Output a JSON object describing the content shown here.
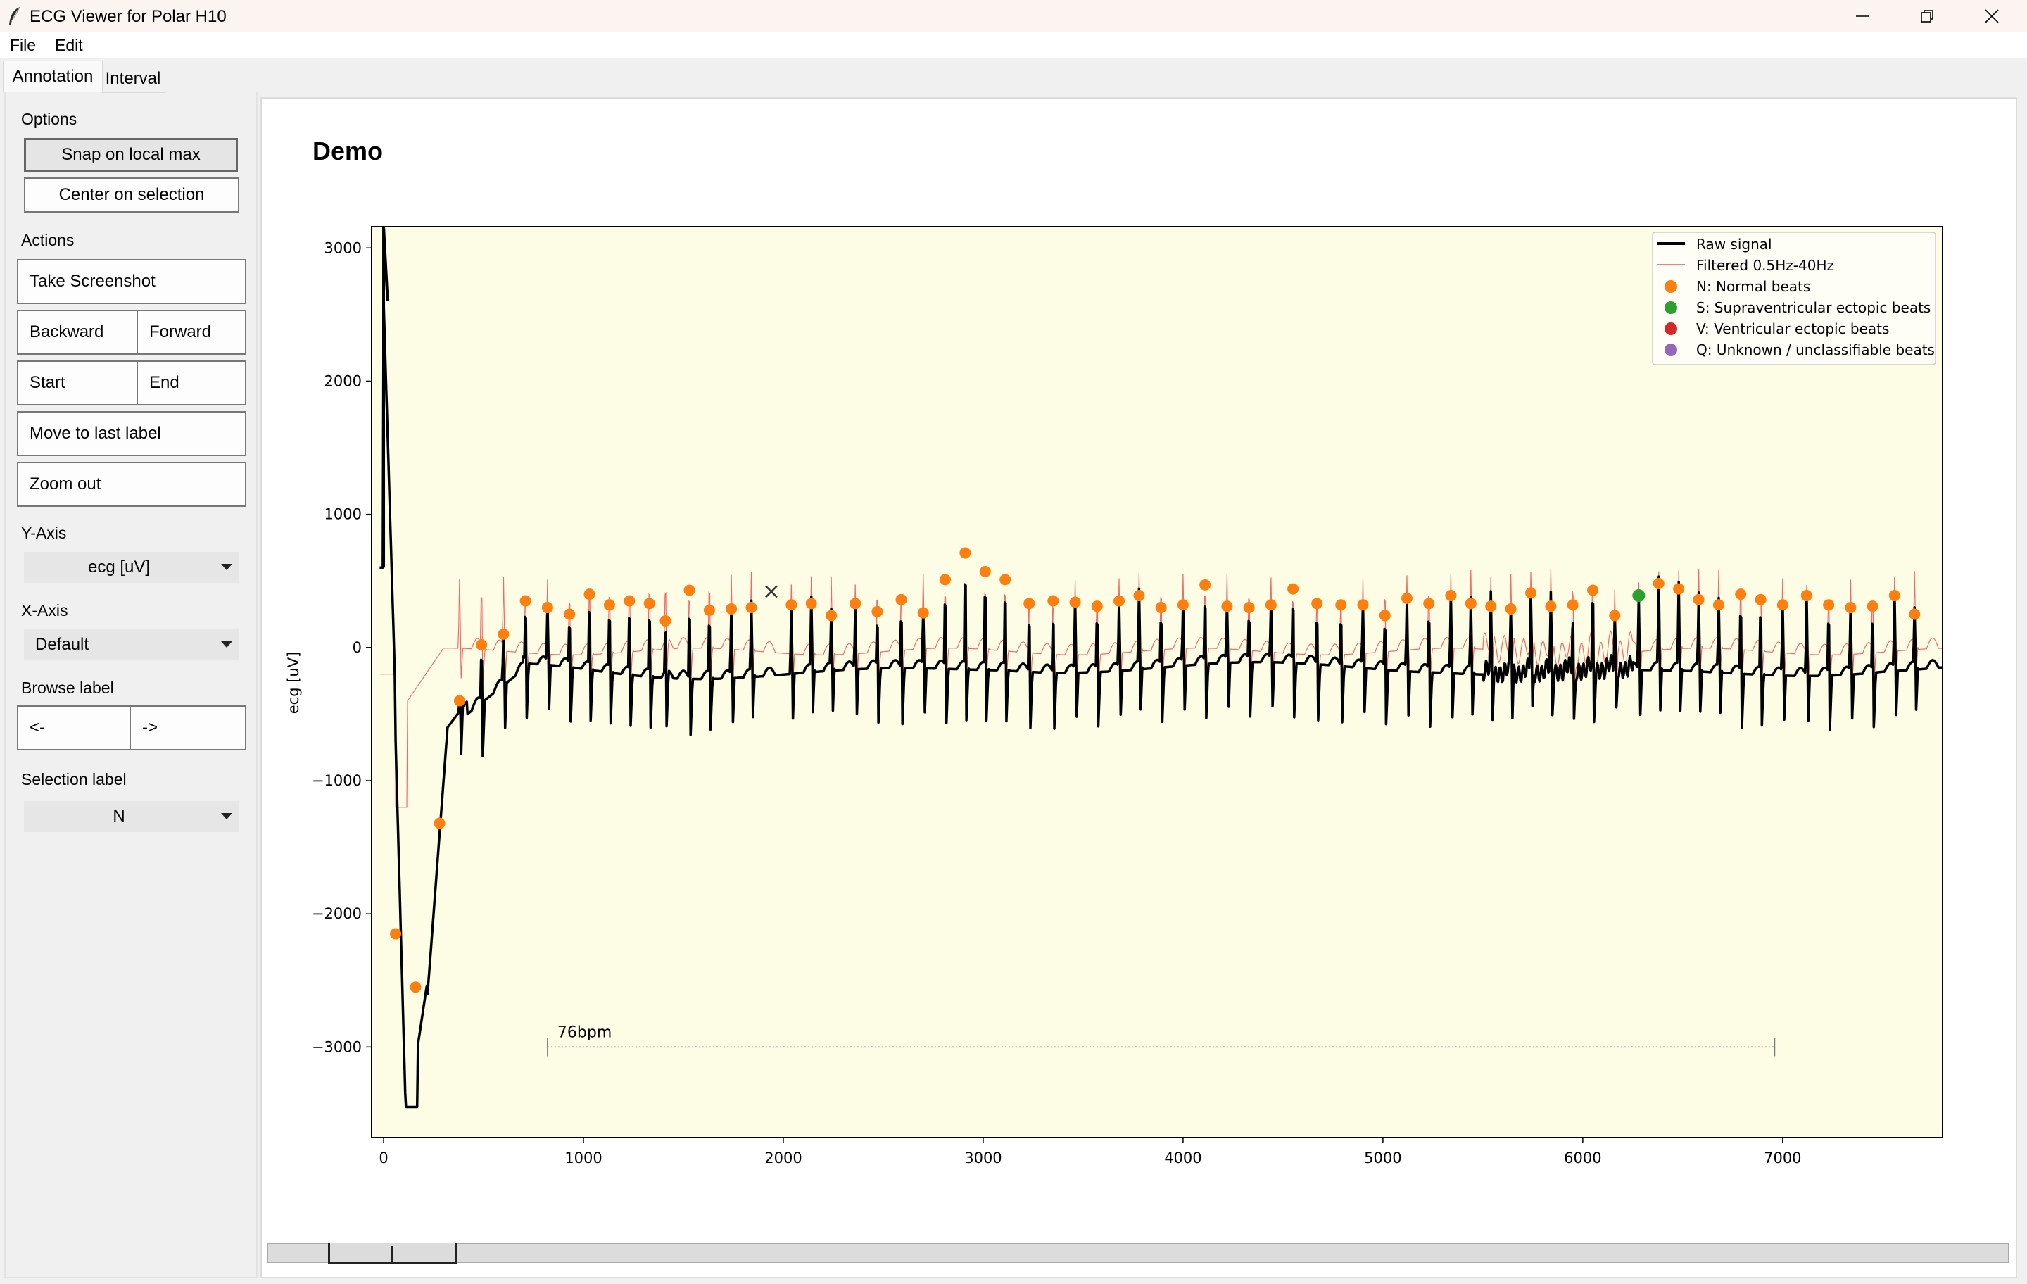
{
  "window": {
    "title": "ECG Viewer for Polar H10"
  },
  "menu": [
    "File",
    "Edit"
  ],
  "tabs": [
    {
      "label": "Annotation",
      "active": true
    },
    {
      "label": "Interval",
      "active": false
    }
  ],
  "sidebar": {
    "options_label": "Options",
    "snap_label": "Snap on local max",
    "center_label": "Center on selection",
    "actions_label": "Actions",
    "screenshot_label": "Take Screenshot",
    "backward_label": "Backward",
    "forward_label": "Forward",
    "start_label": "Start",
    "end_label": "End",
    "move_last_label": "Move to last label",
    "zoom_out_label": "Zoom out",
    "yaxis_label": "Y-Axis",
    "yaxis_value": "ecg [uV]",
    "xaxis_label": "X-Axis",
    "xaxis_value": "Default",
    "browse_label": "Browse label",
    "browse_prev": "<-",
    "browse_next": "->",
    "selection_label": "Selection label",
    "selection_value": "N"
  },
  "plot": {
    "title": "Demo",
    "ylabel": "ecg [uV]",
    "bpm_label": "76bpm",
    "legend": [
      {
        "label": "Raw signal",
        "kind": "line",
        "color": "#000000"
      },
      {
        "label": "Filtered 0.5Hz-40Hz",
        "kind": "line",
        "color": "#f08080"
      },
      {
        "label": "N: Normal beats",
        "kind": "dot",
        "color": "#ff7f0e"
      },
      {
        "label": "S: Supraventricular ectopic beats",
        "kind": "dot",
        "color": "#2ca02c"
      },
      {
        "label": "V: Ventricular ectopic beats",
        "kind": "dot",
        "color": "#d62728"
      },
      {
        "label": "Q: Unknown / unclassifiable beats",
        "kind": "dot",
        "color": "#9467bd"
      }
    ],
    "background": "#fdfde6"
  },
  "chart_data": {
    "type": "line",
    "xlim": [
      -60,
      7800
    ],
    "ylim": [
      -3680,
      3160
    ],
    "xticks": [
      0,
      1000,
      2000,
      3000,
      4000,
      5000,
      6000,
      7000
    ],
    "yticks": [
      3000,
      2000,
      1000,
      0,
      -1000,
      -2000,
      -3000
    ],
    "ytick_labels": [
      "3000",
      "2000",
      "1000",
      "0",
      "−1000",
      "−2000",
      "−3000"
    ],
    "bpm_interval": {
      "x_start": 820,
      "x_end": 6960,
      "y": -3000,
      "label": "76bpm"
    },
    "s_beats": [
      {
        "x": 6280,
        "y": 390
      }
    ],
    "n_beat_peaks": [
      {
        "x": 60,
        "y": -2150
      },
      {
        "x": 160,
        "y": -2550
      },
      {
        "x": 280,
        "y": -1320
      },
      {
        "x": 380,
        "y": -400
      },
      {
        "x": 490,
        "y": 20
      },
      {
        "x": 600,
        "y": 100
      },
      {
        "x": 710,
        "y": 350
      },
      {
        "x": 820,
        "y": 300
      },
      {
        "x": 930,
        "y": 250
      },
      {
        "x": 1030,
        "y": 400
      },
      {
        "x": 1130,
        "y": 320
      },
      {
        "x": 1230,
        "y": 350
      },
      {
        "x": 1330,
        "y": 330
      },
      {
        "x": 1410,
        "y": 200
      },
      {
        "x": 1530,
        "y": 430
      },
      {
        "x": 1630,
        "y": 280
      },
      {
        "x": 1740,
        "y": 290
      },
      {
        "x": 1840,
        "y": 300
      },
      {
        "x": 2040,
        "y": 320
      },
      {
        "x": 2140,
        "y": 330
      },
      {
        "x": 2240,
        "y": 240
      },
      {
        "x": 2360,
        "y": 330
      },
      {
        "x": 2470,
        "y": 270
      },
      {
        "x": 2590,
        "y": 360
      },
      {
        "x": 2700,
        "y": 260
      },
      {
        "x": 2810,
        "y": 510
      },
      {
        "x": 2910,
        "y": 710
      },
      {
        "x": 3010,
        "y": 570
      },
      {
        "x": 3110,
        "y": 510
      },
      {
        "x": 3230,
        "y": 330
      },
      {
        "x": 3350,
        "y": 350
      },
      {
        "x": 3460,
        "y": 340
      },
      {
        "x": 3570,
        "y": 310
      },
      {
        "x": 3680,
        "y": 350
      },
      {
        "x": 3780,
        "y": 390
      },
      {
        "x": 3890,
        "y": 300
      },
      {
        "x": 4000,
        "y": 320
      },
      {
        "x": 4110,
        "y": 470
      },
      {
        "x": 4220,
        "y": 310
      },
      {
        "x": 4330,
        "y": 300
      },
      {
        "x": 4440,
        "y": 320
      },
      {
        "x": 4550,
        "y": 440
      },
      {
        "x": 4670,
        "y": 330
      },
      {
        "x": 4790,
        "y": 320
      },
      {
        "x": 4900,
        "y": 320
      },
      {
        "x": 5010,
        "y": 240
      },
      {
        "x": 5120,
        "y": 370
      },
      {
        "x": 5230,
        "y": 330
      },
      {
        "x": 5340,
        "y": 390
      },
      {
        "x": 5440,
        "y": 330
      },
      {
        "x": 5540,
        "y": 310
      },
      {
        "x": 5640,
        "y": 290
      },
      {
        "x": 5740,
        "y": 410
      },
      {
        "x": 5840,
        "y": 310
      },
      {
        "x": 5950,
        "y": 320
      },
      {
        "x": 6050,
        "y": 430
      },
      {
        "x": 6160,
        "y": 240
      },
      {
        "x": 6380,
        "y": 480
      },
      {
        "x": 6480,
        "y": 440
      },
      {
        "x": 6580,
        "y": 360
      },
      {
        "x": 6680,
        "y": 320
      },
      {
        "x": 6790,
        "y": 400
      },
      {
        "x": 6890,
        "y": 360
      },
      {
        "x": 7000,
        "y": 320
      },
      {
        "x": 7120,
        "y": 390
      },
      {
        "x": 7230,
        "y": 320
      },
      {
        "x": 7340,
        "y": 300
      },
      {
        "x": 7450,
        "y": 310
      },
      {
        "x": 7560,
        "y": 390
      },
      {
        "x": 7660,
        "y": 250
      }
    ],
    "selected_marker": {
      "x": 1940,
      "y": 420
    }
  }
}
